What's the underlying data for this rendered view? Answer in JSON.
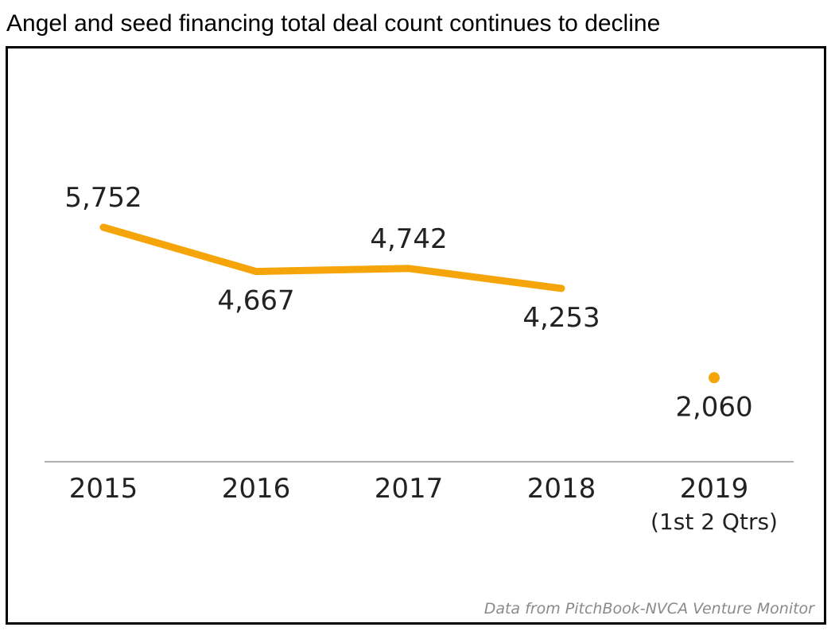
{
  "title": "Angel and seed financing total deal count continues to decline",
  "source_note": "Data from PitchBook-NVCA Venture Monitor",
  "colors": {
    "series": "#F5A50A",
    "axis": "#b0b0b0",
    "text": "#222222",
    "source": "#8a8a8a"
  },
  "chart_data": {
    "type": "line",
    "categories": [
      "2015",
      "2016",
      "2017",
      "2018",
      "2019"
    ],
    "category_sublabels": [
      "",
      "",
      "",
      "",
      "(1st 2 Qtrs)"
    ],
    "series": [
      {
        "values": [
          5752,
          4667,
          4742,
          4253,
          2060
        ],
        "value_labels": [
          "5,752",
          "4,667",
          "4,742",
          "4,253",
          "2,060"
        ],
        "connected_through_index": 3,
        "color": "#F5A50A"
      }
    ],
    "ylim": [
      0,
      5752
    ],
    "grid": false,
    "legend": "none",
    "xlabel": "",
    "ylabel": ""
  }
}
